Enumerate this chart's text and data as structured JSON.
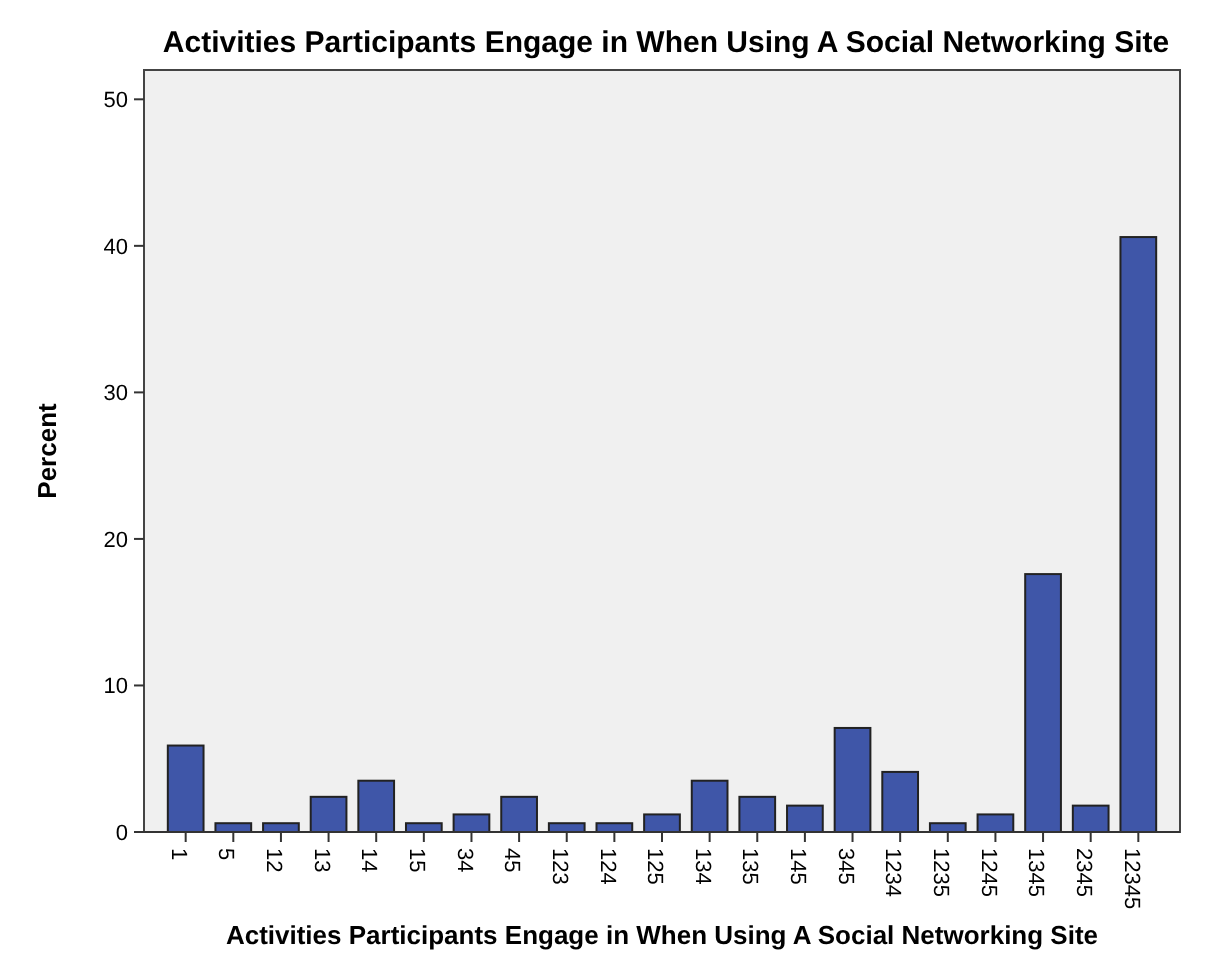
{
  "chart_data": {
    "type": "bar",
    "title": "Activities Participants Engage in When Using A Social Networking Site",
    "xlabel": "Activities Participants Engage in When Using A Social Networking Site",
    "ylabel": "Percent",
    "categories": [
      "1",
      "5",
      "12",
      "13",
      "14",
      "15",
      "34",
      "45",
      "123",
      "124",
      "125",
      "134",
      "135",
      "145",
      "345",
      "1234",
      "1235",
      "1245",
      "1345",
      "2345",
      "12345"
    ],
    "values": [
      5.9,
      0.6,
      0.6,
      2.4,
      3.5,
      0.6,
      1.2,
      2.4,
      0.6,
      0.6,
      1.2,
      3.5,
      2.4,
      1.8,
      7.1,
      4.1,
      0.6,
      1.2,
      17.6,
      1.8,
      40.6
    ],
    "color": "#3f56a8",
    "ylim": [
      0,
      52
    ],
    "yticks": [
      0,
      10,
      20,
      30,
      40,
      50
    ],
    "grid": false
  }
}
